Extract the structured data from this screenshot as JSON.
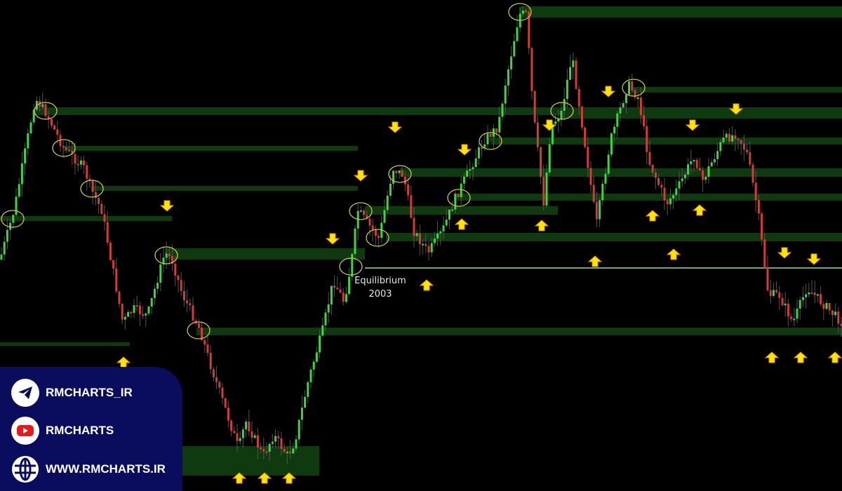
{
  "chart_data": {
    "type": "candlestick",
    "title": "",
    "annotations": {
      "equilibrium_label": "Equilibrium",
      "equilibrium_value": "2003"
    },
    "colors": {
      "bull": "#3ed63e",
      "bear": "#d63a3a",
      "zone": "#0f3a0f",
      "equilibrium_line": "#8fe08f",
      "arrow": "#ffe600",
      "circle": "#c8c83a"
    },
    "grid": false
  },
  "branding": {
    "telegram": "RMCHARTS_IR",
    "youtube": "RMCHARTS",
    "website": "WWW.RMCHARTS.IR",
    "panel_color": "#0a0c5e"
  }
}
